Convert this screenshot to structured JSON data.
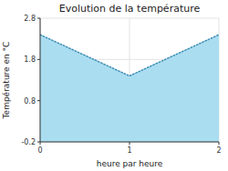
{
  "chart_data": {
    "type": "area",
    "title": "Evolution de la température",
    "x_label": "heure par heure",
    "y_label": "Température en °C",
    "x": [
      0,
      1,
      2
    ],
    "values": [
      2.4,
      1.4,
      2.4
    ],
    "xlim": [
      0,
      2
    ],
    "ylim": [
      -0.2,
      2.8
    ],
    "xticks": [
      0,
      1,
      2
    ],
    "yticks": [
      -0.2,
      0.8,
      1.8,
      2.8
    ],
    "color": "#aaddf0",
    "line_style": "dotted",
    "grid": true
  }
}
